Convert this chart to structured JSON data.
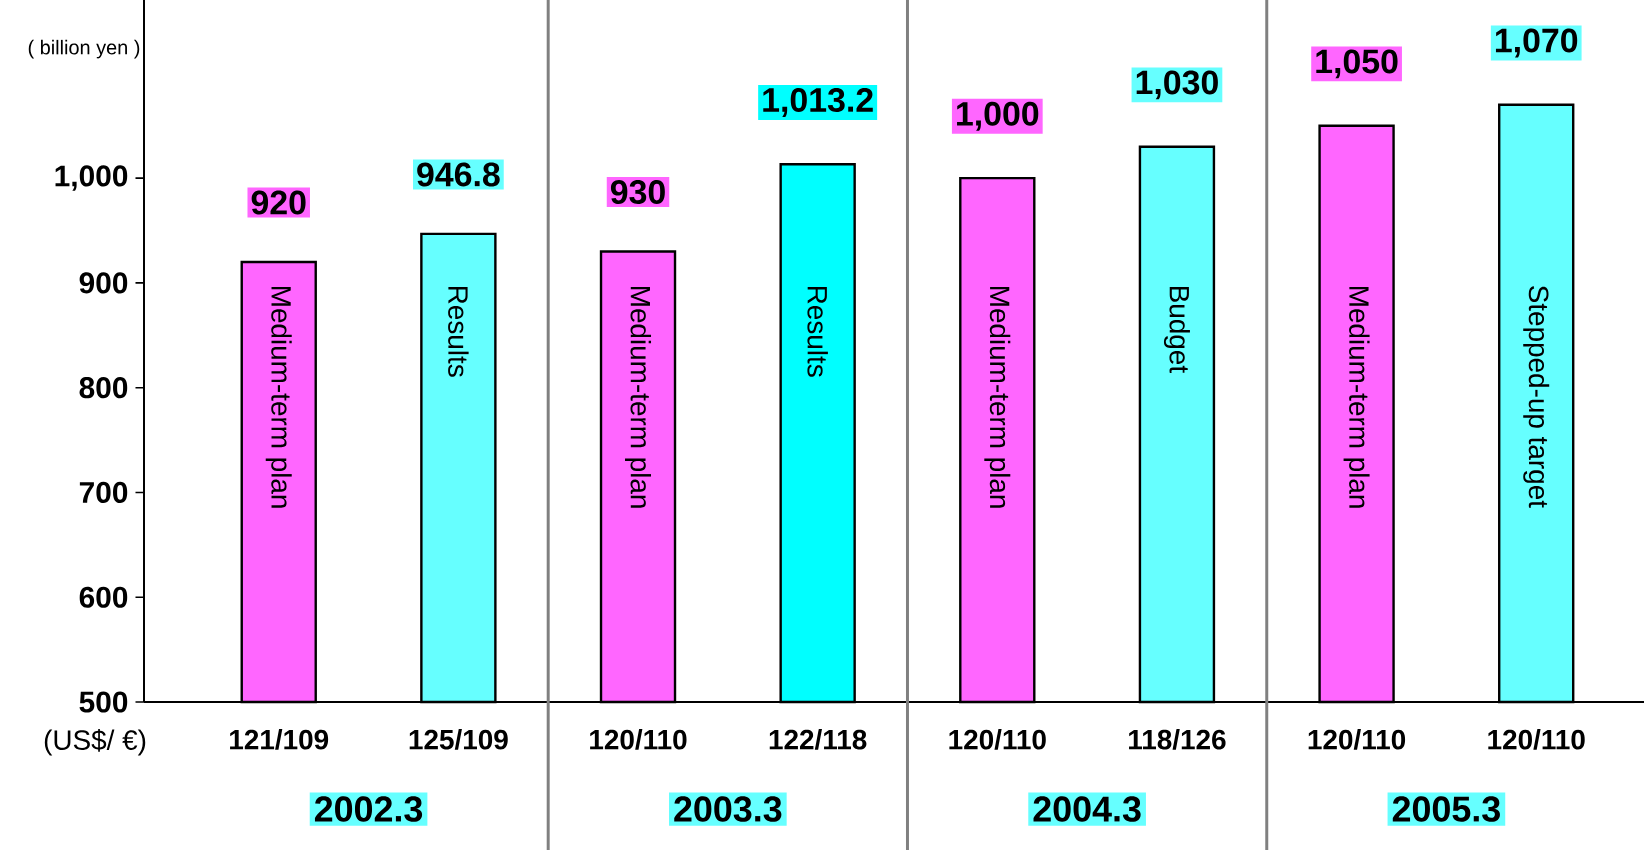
{
  "chart_data": {
    "type": "bar",
    "ylabel": "( billion yen )",
    "categories": [
      "121/109",
      "125/109",
      "120/110",
      "122/118",
      "120/110",
      "118/126",
      "120/110",
      "120/110"
    ],
    "values": [
      920,
      946.8,
      930,
      1013.2,
      1000,
      1030,
      1050,
      1070
    ],
    "value_labels": [
      "920",
      "946.8",
      "930",
      "1,013.2",
      "1,000",
      "1,030",
      "1,050",
      "1,070"
    ],
    "colors": [
      "#ff66ff",
      "#66ffff",
      "#ff66ff",
      "#00ffff",
      "#ff66ff",
      "#66ffff",
      "#ff66ff",
      "#66ffff"
    ],
    "ylim": [
      500,
      1170
    ],
    "yticks": [
      500,
      600,
      700,
      800,
      900,
      {
        "value": 1000,
        "label": "1,000"
      }
    ],
    "annotations": [
      "Medium-term plan",
      "Results",
      "Medium-term plan",
      "Results",
      "Medium-term plan",
      "Budget",
      "Medium-term plan",
      "Stepped-up target",
      "2002.3",
      "2003.3",
      "2004.3",
      "2005.3",
      "(US$/ €)"
    ],
    "grid": false
  }
}
